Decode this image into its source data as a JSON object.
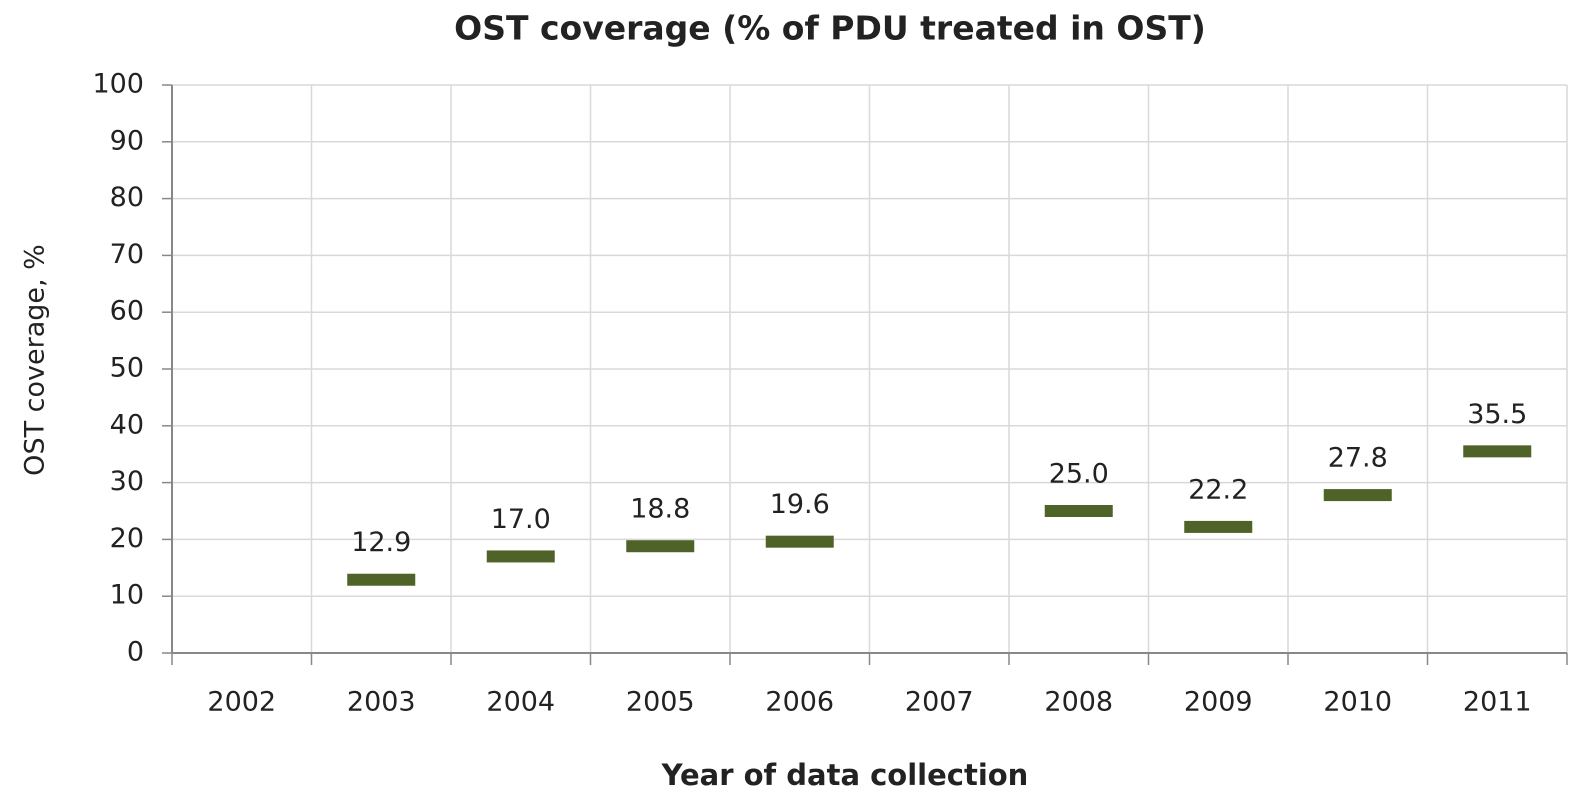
{
  "chart_data": {
    "type": "marker",
    "title": "OST coverage (% of PDU treated in OST)",
    "x_label": "Year of data collection",
    "y_label": "OST coverage, %",
    "categories": [
      "2002",
      "2003",
      "2004",
      "2005",
      "2006",
      "2007",
      "2008",
      "2009",
      "2010",
      "2011"
    ],
    "values": [
      null,
      12.9,
      17.0,
      18.8,
      19.6,
      null,
      25.0,
      22.2,
      27.8,
      35.5
    ],
    "value_labels": [
      null,
      "12.9",
      "17.0",
      "18.8",
      "19.6",
      null,
      "25.0",
      "22.2",
      "27.8",
      "35.5"
    ],
    "color": "#4f6228",
    "ylim": [
      0,
      100
    ],
    "yticks": [
      0,
      10,
      20,
      30,
      40,
      50,
      60,
      70,
      80,
      90,
      100
    ],
    "grid": true
  }
}
